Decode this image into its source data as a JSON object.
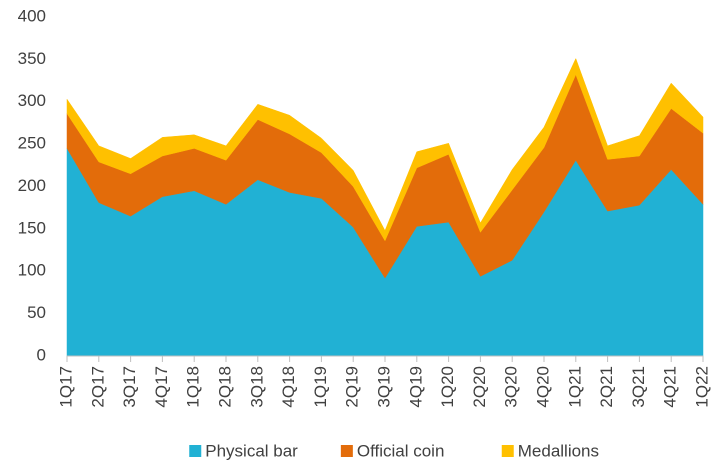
{
  "chart_data": {
    "type": "stacked_area",
    "categories": [
      "1Q17",
      "2Q17",
      "3Q17",
      "4Q17",
      "1Q18",
      "2Q18",
      "3Q18",
      "4Q18",
      "1Q19",
      "2Q19",
      "3Q19",
      "4Q19",
      "1Q20",
      "2Q20",
      "3Q20",
      "4Q20",
      "1Q21",
      "2Q21",
      "3Q21",
      "4Q21",
      "1Q22"
    ],
    "series": [
      {
        "name": "Physical bar",
        "color": "#21b1d4",
        "values": [
          245,
          181,
          165,
          188,
          195,
          179,
          208,
          193,
          186,
          152,
          92,
          153,
          158,
          94,
          113,
          170,
          231,
          171,
          178,
          220,
          179
        ]
      },
      {
        "name": "Official coin",
        "color": "#e36c0a",
        "values": [
          41,
          48,
          50,
          48,
          50,
          52,
          71,
          69,
          54,
          48,
          44,
          69,
          80,
          52,
          83,
          76,
          101,
          61,
          58,
          72,
          84
        ]
      },
      {
        "name": "Medallions",
        "color": "#ffc000",
        "values": [
          17,
          19,
          18,
          22,
          16,
          17,
          18,
          22,
          17,
          19,
          12,
          19,
          13,
          11,
          24,
          24,
          19,
          16,
          24,
          30,
          19
        ]
      }
    ],
    "ylim": [
      0,
      400
    ],
    "yticks": [
      0,
      50,
      100,
      150,
      200,
      250,
      300,
      350,
      400
    ],
    "grid": false,
    "legend": "bottom"
  }
}
